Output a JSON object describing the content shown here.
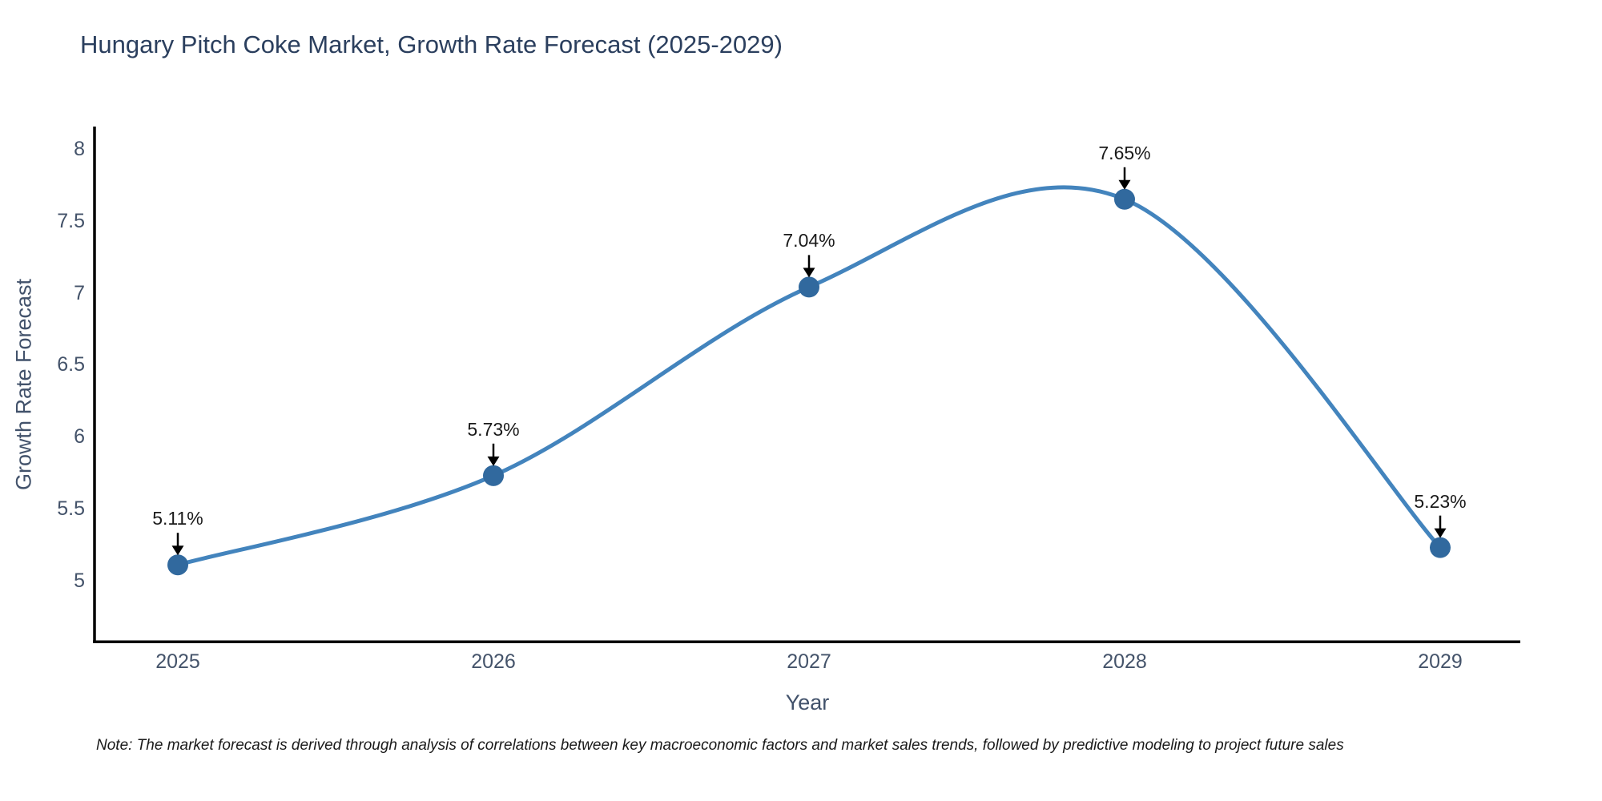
{
  "chart_data": {
    "type": "line",
    "title": "Hungary Pitch Coke Market, Growth Rate Forecast (2025-2029)",
    "xlabel": "Year",
    "ylabel": "Growth Rate Forecast",
    "line_shape": "spline",
    "grid": false,
    "legend": false,
    "categories": [
      "2025",
      "2026",
      "2027",
      "2028",
      "2029"
    ],
    "values": [
      5.11,
      5.73,
      7.04,
      7.65,
      5.23
    ],
    "point_labels": [
      "5.11%",
      "5.73%",
      "7.04%",
      "7.65%",
      "5.23%"
    ],
    "ytick_labels": [
      "5",
      "5.5",
      "6",
      "6.5",
      "7",
      "7.5",
      "8"
    ],
    "yticks": [
      5,
      5.5,
      6,
      6.5,
      7,
      7.5,
      8
    ],
    "ylim": [
      4.57,
      8.16
    ],
    "xlim_years": [
      2024.74,
      2029.25
    ],
    "colors": {
      "line": "#4384bd",
      "marker": "#31699e",
      "annotation_text": "#1a1a1a",
      "arrow": "#000000",
      "axis_line": "#000000",
      "tick_text": "#44536a",
      "title_text": "#2b3f5e"
    }
  },
  "note": "Note: The market forecast is derived through analysis of correlations between key macroeconomic factors and market sales trends, followed by predictive modeling to project future sales"
}
